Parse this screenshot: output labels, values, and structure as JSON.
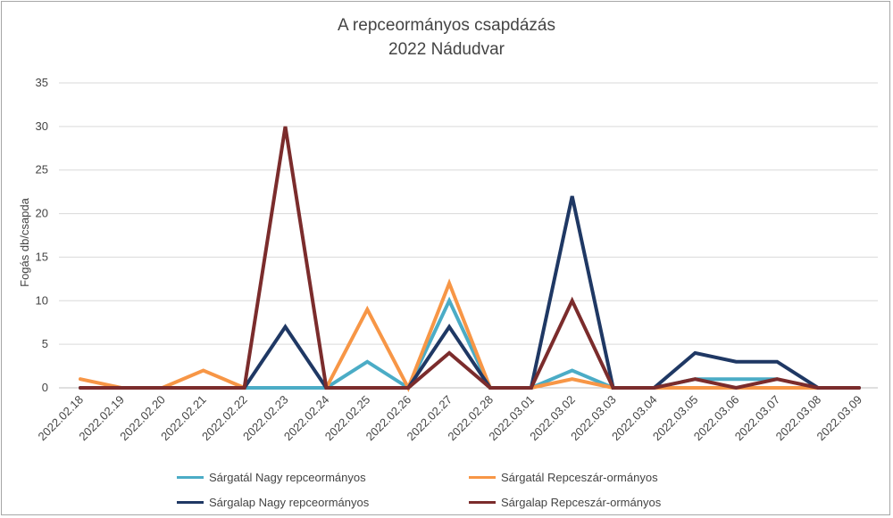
{
  "chart_data": {
    "type": "line",
    "title": "A repceormányos csapdázás",
    "subtitle": "2022 Nádudvar",
    "xlabel": "",
    "ylabel": "Fogás db/csapda",
    "ylim": [
      0,
      35
    ],
    "yticks": [
      0,
      5,
      10,
      15,
      20,
      25,
      30,
      35
    ],
    "grid": true,
    "legend_position": "bottom",
    "categories": [
      "2022.02.18",
      "2022.02.19",
      "2022.02.20",
      "2022.02.21",
      "2022.02.22",
      "2022.02.23",
      "2022.02.24",
      "2022.02.25",
      "2022.02.26",
      "2022.02.27",
      "2022.02.28",
      "2022.03.01",
      "2022.03.02",
      "2022.03.03",
      "2022.03.04",
      "2022.03.05",
      "2022.03.06",
      "2022.03.07",
      "2022.03.08",
      "2022.03.09"
    ],
    "series": [
      {
        "name": "Sárgatál Nagy repceormányos",
        "color": "#4bacc6",
        "values": [
          null,
          0,
          0,
          0,
          0,
          0,
          0,
          3,
          0,
          10,
          0,
          0,
          2,
          0,
          0,
          1,
          1,
          1,
          null,
          null
        ]
      },
      {
        "name": "Sárgatál Repceszár-ormányos",
        "color": "#f79646",
        "values": [
          1,
          0,
          0,
          2,
          0,
          null,
          0,
          9,
          0,
          12,
          0,
          0,
          1,
          0,
          0,
          0,
          0,
          0,
          0,
          null
        ]
      },
      {
        "name": "Sárgalap Nagy repceormányos",
        "color": "#1f3864",
        "values": [
          0,
          0,
          0,
          0,
          0,
          7,
          0,
          0,
          0,
          7,
          0,
          0,
          22,
          0,
          0,
          4,
          3,
          3,
          0,
          0
        ]
      },
      {
        "name": "Sárgalap Repceszár-ormányos",
        "color": "#7b2c2c",
        "values": [
          0,
          0,
          0,
          0,
          0,
          30,
          0,
          0,
          0,
          4,
          0,
          0,
          10,
          0,
          0,
          1,
          0,
          1,
          0,
          0
        ]
      }
    ]
  },
  "legend_order": [
    0,
    1,
    2,
    3
  ]
}
